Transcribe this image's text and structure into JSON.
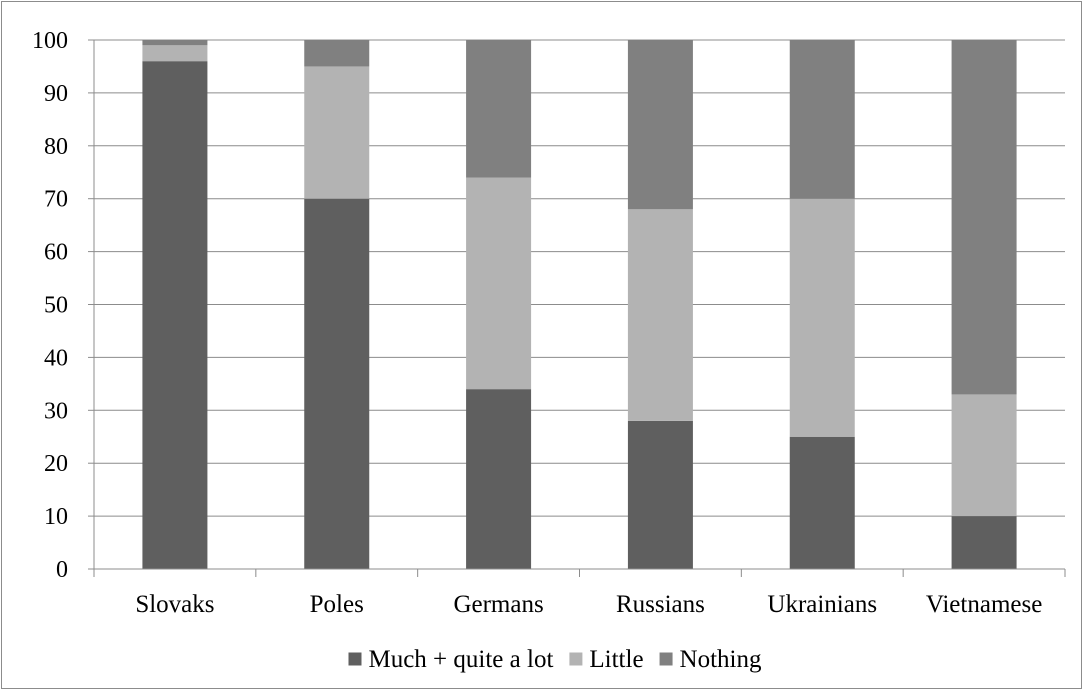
{
  "chart_data": {
    "type": "bar",
    "stacked": true,
    "categories": [
      "Slovaks",
      "Poles",
      "Germans",
      "Russians",
      "Ukrainians",
      "Vietnamese"
    ],
    "series": [
      {
        "name": "Much + quite a lot",
        "color": "#5f5f5f",
        "values": [
          96,
          70,
          34,
          28,
          25,
          10
        ]
      },
      {
        "name": "Little",
        "color": "#b3b3b3",
        "values": [
          3,
          25,
          40,
          40,
          45,
          23
        ]
      },
      {
        "name": "Nothing",
        "color": "#808080",
        "values": [
          1,
          5,
          26,
          32,
          30,
          67
        ]
      }
    ],
    "ylim": [
      0,
      100
    ],
    "yticks": [
      0,
      10,
      20,
      30,
      40,
      50,
      60,
      70,
      80,
      90,
      100
    ],
    "grid": true,
    "legend_position": "bottom",
    "title": "",
    "xlabel": "",
    "ylabel": ""
  }
}
